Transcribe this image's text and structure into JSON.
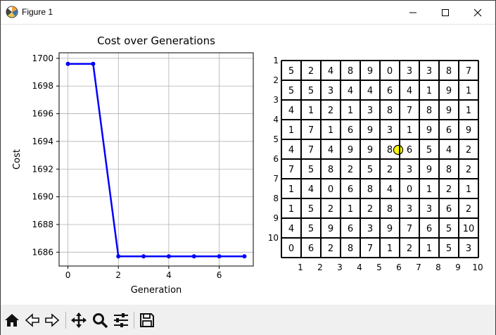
{
  "window": {
    "title": "Figure 1",
    "app_icon": "matplotlib-figure-icon",
    "controls": [
      "minimize-icon",
      "maximize-icon",
      "close-icon"
    ]
  },
  "chart_data": [
    {
      "type": "line",
      "title": "Cost over Generations",
      "xlabel": "Generation",
      "ylabel": "Cost",
      "x": [
        0,
        1,
        2,
        3,
        4,
        5,
        6,
        7
      ],
      "series": [
        {
          "values": [
            1699.6,
            1699.6,
            1685.7,
            1685.7,
            1685.7,
            1685.7,
            1685.7,
            1685.7
          ],
          "color": "#0000ff",
          "marker": "circle"
        }
      ],
      "xlim": [
        -0.35,
        7.35
      ],
      "ylim": [
        1685.0,
        1700.4
      ],
      "xticks": [
        0,
        2,
        4,
        6
      ],
      "yticks": [
        1686,
        1688,
        1690,
        1692,
        1694,
        1696,
        1698,
        1700
      ],
      "grid": true
    },
    {
      "type": "heatmap",
      "description_free": true,
      "grid": [
        [
          5,
          2,
          4,
          8,
          9,
          0,
          3,
          3,
          8,
          7
        ],
        [
          5,
          5,
          3,
          4,
          4,
          6,
          4,
          1,
          9,
          1
        ],
        [
          4,
          1,
          2,
          1,
          3,
          8,
          7,
          8,
          9,
          1
        ],
        [
          1,
          7,
          1,
          6,
          9,
          3,
          1,
          9,
          6,
          9
        ],
        [
          4,
          7,
          4,
          9,
          9,
          8,
          6,
          5,
          4,
          2
        ],
        [
          7,
          5,
          8,
          2,
          5,
          2,
          3,
          9,
          8,
          2
        ],
        [
          1,
          4,
          0,
          6,
          8,
          4,
          0,
          1,
          2,
          1
        ],
        [
          1,
          5,
          2,
          1,
          2,
          8,
          3,
          3,
          6,
          2
        ],
        [
          4,
          5,
          9,
          6,
          3,
          9,
          7,
          6,
          5,
          10
        ],
        [
          0,
          6,
          2,
          8,
          7,
          1,
          2,
          1,
          5,
          3
        ]
      ],
      "xticks": [
        1,
        2,
        3,
        4,
        5,
        6,
        7,
        8,
        9,
        10
      ],
      "yticks": [
        1,
        2,
        3,
        4,
        5,
        6,
        7,
        8,
        9,
        10
      ],
      "highlight": {
        "row": 5,
        "col": 6,
        "color": "#ffff00"
      }
    }
  ],
  "toolbar": {
    "tools": [
      "home-icon",
      "back-icon",
      "forward-icon",
      "pan-icon",
      "zoom-icon",
      "configure-subplots-icon",
      "save-icon"
    ]
  }
}
